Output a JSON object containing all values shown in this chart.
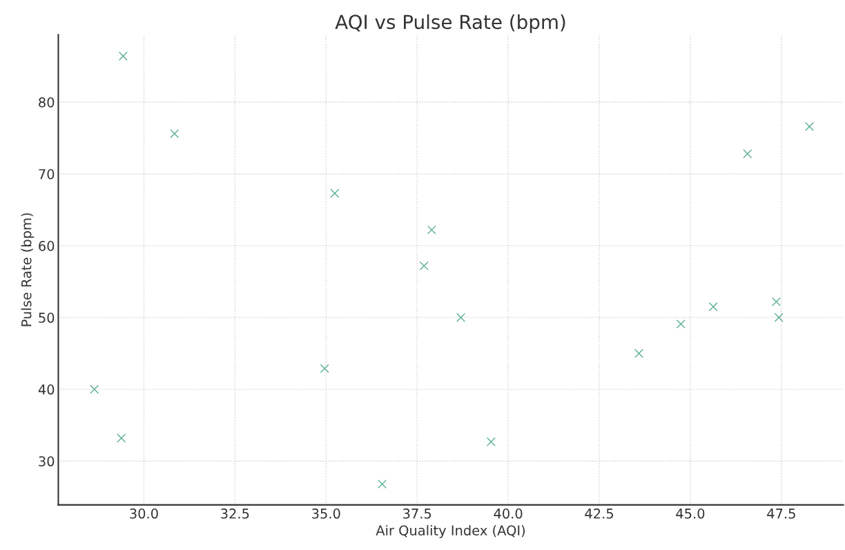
{
  "chart_data": {
    "type": "scatter",
    "title": "AQI vs Pulse Rate (bpm)",
    "xlabel": "Air Quality Index (AQI)",
    "ylabel": "Pulse Rate (bpm)",
    "x": [
      28.64,
      29.43,
      29.38,
      30.84,
      34.96,
      35.24,
      36.54,
      37.69,
      37.9,
      38.7,
      39.53,
      43.59,
      44.74,
      45.63,
      46.57,
      47.36,
      47.43,
      48.27
    ],
    "series": [
      {
        "color": "#5aae94",
        "values": [
          40.0,
          86.4,
          33.2,
          75.6,
          42.9,
          67.3,
          26.8,
          57.2,
          62.2,
          50.0,
          32.7,
          45.0,
          49.1,
          51.5,
          72.8,
          52.2,
          50.0,
          76.6
        ]
      }
    ],
    "marker": "cross",
    "grid": true,
    "xlim": [
      27.65,
      49.2
    ],
    "ylim": [
      23.9,
      89.4
    ],
    "xticks": [
      {
        "value": 30,
        "label": "30.0"
      },
      32.5,
      {
        "value": 35,
        "label": "35.0"
      },
      37.5,
      {
        "value": 40,
        "label": "40.0"
      },
      42.5,
      {
        "value": 45,
        "label": "45.0"
      },
      47.5
    ],
    "yticks": [
      30,
      40,
      50,
      60,
      70,
      80
    ]
  }
}
